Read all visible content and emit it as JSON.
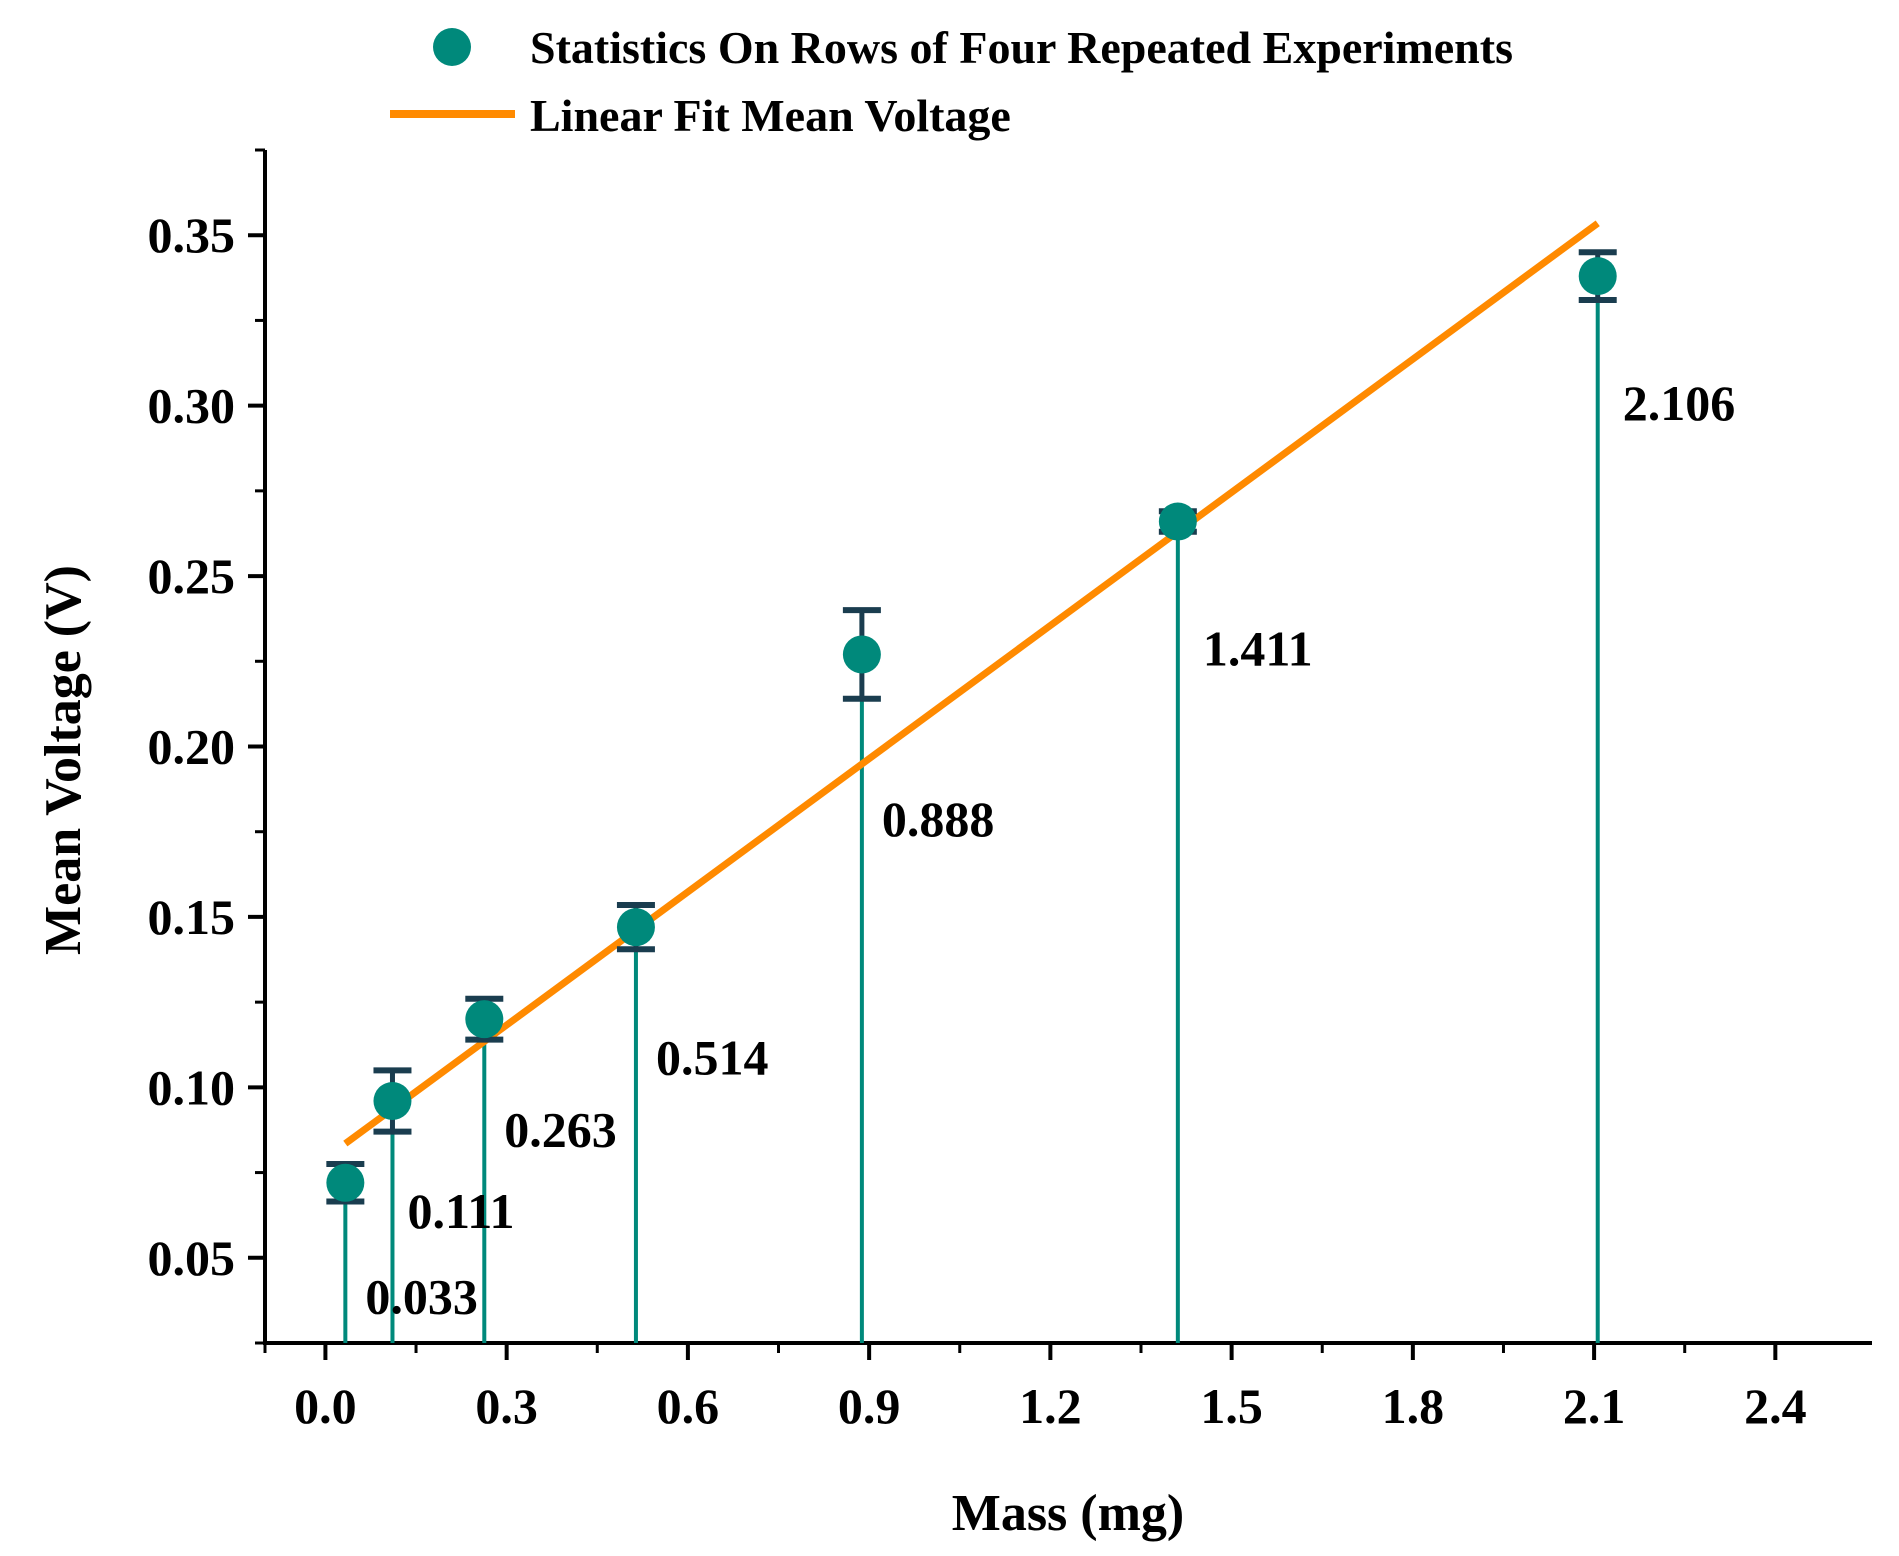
{
  "chart_data": {
    "type": "scatter",
    "title": "",
    "xlabel": "Mass (mg)",
    "ylabel": "Mean Voltage (V)",
    "xlim": [
      -0.1,
      2.56
    ],
    "ylim": [
      0.025,
      0.375
    ],
    "x_ticks": [
      0.0,
      0.3,
      0.6,
      0.9,
      1.2,
      1.5,
      1.8,
      2.1,
      2.4
    ],
    "x_tick_labels": [
      "0.0",
      "0.3",
      "0.6",
      "0.9",
      "1.2",
      "1.5",
      "1.8",
      "2.1",
      "2.4"
    ],
    "y_ticks": [
      0.05,
      0.1,
      0.15,
      0.2,
      0.25,
      0.3,
      0.35
    ],
    "y_tick_labels": [
      "0.05",
      "0.10",
      "0.15",
      "0.20",
      "0.25",
      "0.30",
      "0.35"
    ],
    "grid": false,
    "legend": {
      "placement": "top",
      "entries": [
        {
          "label": "Statistics On Rows of Four Repeated Experiments",
          "marker": "circle",
          "color": "#00897b"
        },
        {
          "label": "Linear Fit Mean Voltage",
          "marker": "line",
          "color": "#ff8a00"
        }
      ]
    },
    "series": [
      {
        "name": "Statistics On Rows of Four Repeated Experiments",
        "kind": "scatter-errorbar-drop",
        "color": "#00897b",
        "error_color": "#1a3d4f",
        "points": [
          {
            "x": 0.033,
            "y": 0.072,
            "err": 0.0055,
            "label": "0.033"
          },
          {
            "x": 0.111,
            "y": 0.096,
            "err": 0.009,
            "label": "0.111"
          },
          {
            "x": 0.263,
            "y": 0.12,
            "err": 0.006,
            "label": "0.263"
          },
          {
            "x": 0.514,
            "y": 0.147,
            "err": 0.0065,
            "label": "0.514"
          },
          {
            "x": 0.888,
            "y": 0.227,
            "err": 0.013,
            "label": "0.888"
          },
          {
            "x": 1.411,
            "y": 0.266,
            "err": 0.003,
            "label": "1.411"
          },
          {
            "x": 2.106,
            "y": 0.338,
            "err": 0.007,
            "label": "2.106"
          }
        ]
      },
      {
        "name": "Linear Fit Mean Voltage",
        "kind": "line",
        "color": "#ff8a00",
        "x": [
          0.033,
          2.106
        ],
        "y": [
          0.0835,
          0.3535
        ]
      }
    ]
  }
}
